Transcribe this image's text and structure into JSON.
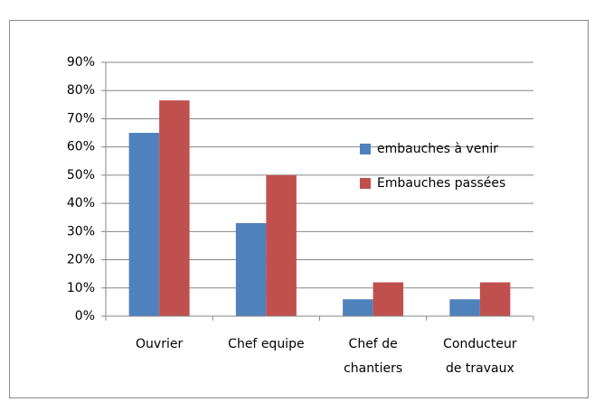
{
  "chart_data": {
    "type": "bar",
    "categories": [
      "Ouvrier",
      "Chef equipe",
      "Chef de\nchantiers",
      "Conducteur\nde travaux"
    ],
    "series": [
      {
        "name": "embauches à venir",
        "color": "#4f81bd",
        "values": [
          65,
          33,
          6,
          6
        ]
      },
      {
        "name": "Embauches passées",
        "color": "#c0504d",
        "values": [
          76.5,
          50,
          12,
          12
        ]
      }
    ],
    "ylim": [
      0,
      90
    ],
    "yticks": [
      {
        "value": 0,
        "label": "0%"
      },
      {
        "value": 10,
        "label": "10%"
      },
      {
        "value": 20,
        "label": "20%"
      },
      {
        "value": 30,
        "label": "30%"
      },
      {
        "value": 40,
        "label": "40%"
      },
      {
        "value": 50,
        "label": "50%"
      },
      {
        "value": 60,
        "label": "60%"
      },
      {
        "value": 70,
        "label": "70%"
      },
      {
        "value": 80,
        "label": "80%"
      },
      {
        "value": 90,
        "label": "90%"
      }
    ],
    "grid": true,
    "legend": "right"
  }
}
